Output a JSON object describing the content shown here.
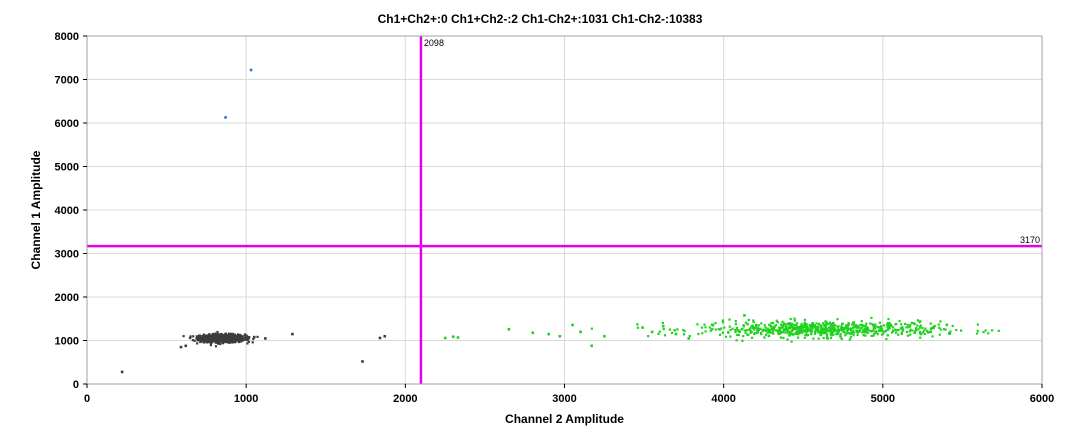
{
  "chart_data": {
    "type": "scatter",
    "title": "Ch1+Ch2+:0  Ch1+Ch2-:2  Ch1-Ch2+:1031  Ch1-Ch2-:10383",
    "xlabel": "Channel 2 Amplitude",
    "ylabel": "Channel 1 Amplitude",
    "xlim": [
      0,
      6000
    ],
    "ylim": [
      0,
      8000
    ],
    "xticks": [
      0,
      1000,
      2000,
      3000,
      4000,
      5000,
      6000
    ],
    "yticks": [
      0,
      1000,
      2000,
      3000,
      4000,
      5000,
      6000,
      7000,
      8000
    ],
    "grid": true,
    "thresholds": {
      "x": {
        "value": 2098,
        "label": "2098",
        "color": "#e600e6"
      },
      "y": {
        "value": 3170,
        "label": "3170",
        "color": "#e600e6"
      }
    },
    "colors": {
      "negative": "#3c3c3c",
      "ch2_positive": "#1ed21e",
      "ch1_positive": "#1e78dc",
      "grid": "#d9d9d9"
    },
    "series": [
      {
        "category": "Ch1+Ch2-",
        "color": "#1e78dc",
        "points": [
          [
            870,
            6130
          ],
          [
            1030,
            7220
          ]
        ]
      },
      {
        "category": "Ch1-Ch2-",
        "color": "#3c3c3c",
        "cluster": {
          "center": [
            850,
            1050
          ],
          "spread": [
            70,
            45
          ],
          "count": 10383
        },
        "points": [
          [
            220,
            280
          ],
          [
            1120,
            1050
          ],
          [
            1290,
            1150
          ],
          [
            1730,
            520
          ],
          [
            1840,
            1060
          ],
          [
            1870,
            1100
          ],
          [
            590,
            850
          ],
          [
            620,
            880
          ],
          [
            1050,
            1080
          ],
          [
            1000,
            1110
          ]
        ]
      },
      {
        "category": "Ch1-Ch2+",
        "color": "#1ed21e",
        "cluster": {
          "center": [
            4600,
            1260
          ],
          "spread": [
            380,
            90
          ],
          "count": 1031
        },
        "points": [
          [
            2250,
            1060
          ],
          [
            2300,
            1090
          ],
          [
            2330,
            1070
          ],
          [
            2650,
            1260
          ],
          [
            2800,
            1180
          ],
          [
            2900,
            1150
          ],
          [
            2970,
            1100
          ],
          [
            3050,
            1360
          ],
          [
            3100,
            1200
          ],
          [
            3170,
            880
          ],
          [
            3250,
            1100
          ],
          [
            3490,
            1300
          ],
          [
            3550,
            1200
          ],
          [
            3620,
            1330
          ],
          [
            3700,
            1150
          ],
          [
            3780,
            1050
          ],
          [
            5200,
            1180
          ],
          [
            5300,
            1200
          ],
          [
            5420,
            1160
          ],
          [
            4130,
            1580
          ]
        ]
      }
    ]
  }
}
